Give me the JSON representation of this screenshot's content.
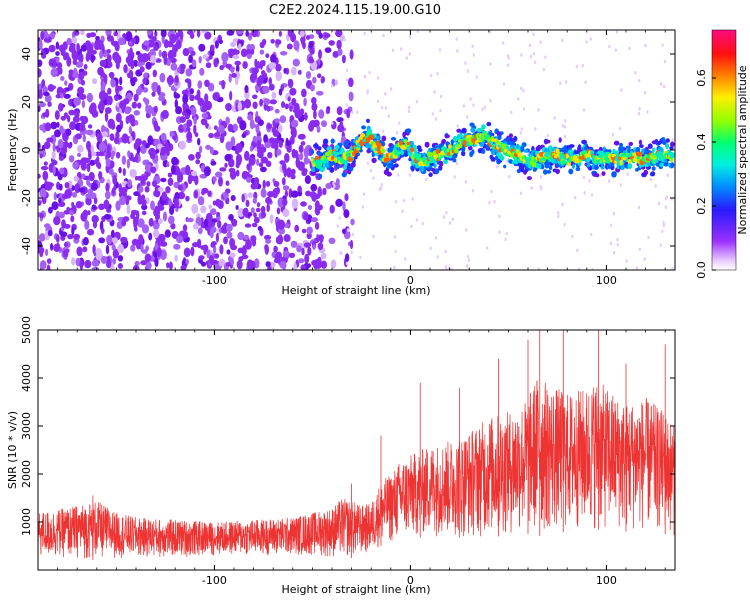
{
  "title": "C2E2.2024.115.19.00.G10",
  "colors": {
    "snr_line": "#ee3333",
    "background": "#ffffff",
    "axis": "#000000"
  },
  "chart_data": [
    {
      "type": "heatmap",
      "xlabel": "Height of straight line (km)",
      "ylabel": "Frequency (Hz)",
      "xlim": [
        -190,
        135
      ],
      "ylim": [
        -50,
        50
      ],
      "xticks": [
        -100,
        0,
        100
      ],
      "xtick_labels": [
        "-100",
        "0",
        "100"
      ],
      "yticks": [
        -40,
        -20,
        0,
        20,
        40
      ],
      "ytick_labels": [
        "-40",
        "-20",
        "0",
        "20",
        "40"
      ],
      "colorbar": {
        "label": "Normalized spectral amplitude",
        "range": [
          0,
          0.75
        ],
        "ticks": [
          0.0,
          0.2,
          0.4,
          0.6
        ],
        "tick_labels": [
          "0.0",
          "0.2",
          "0.4",
          "0.6"
        ],
        "colormap": "rainbow: white, violet, blue, cyan, green, yellow, orange, red, magenta"
      },
      "noise_region_x": [
        -190,
        -35
      ],
      "signal_trace": {
        "x": [
          -50,
          -45,
          -40,
          -35,
          -30,
          -25,
          -22,
          -18,
          -15,
          -12,
          -8,
          -5,
          -2,
          0,
          3,
          8,
          15,
          20,
          25,
          30,
          35,
          38,
          42,
          48,
          55,
          60,
          65,
          70,
          75,
          80,
          85,
          90,
          95,
          100,
          105,
          110,
          115,
          120,
          125,
          130,
          134
        ],
        "y": [
          -6,
          -4,
          -2,
          -4,
          -2,
          4,
          6,
          2,
          0,
          -4,
          -2,
          2,
          3,
          0,
          -4,
          -4,
          -2,
          0,
          2,
          4,
          5,
          6,
          3,
          0,
          -2,
          -5,
          -4,
          -3,
          -2,
          -4,
          -3,
          -2,
          -4,
          -3,
          -4,
          -3,
          -3,
          -4,
          -3,
          -2,
          -3
        ]
      }
    },
    {
      "type": "area",
      "xlabel": "Height of straight line (km)",
      "ylabel": "SNR (10 * v/v)",
      "xlim": [
        -190,
        135
      ],
      "ylim": [
        0,
        5000
      ],
      "xticks": [
        -100,
        0,
        100
      ],
      "xtick_labels": [
        "-100",
        "0",
        "100"
      ],
      "yticks": [
        1000,
        2000,
        3000,
        4000,
        5000
      ],
      "ytick_labels": [
        "1000",
        "2000",
        "3000",
        "4000",
        "5000"
      ],
      "envelope": {
        "x": [
          -190,
          -175,
          -160,
          -150,
          -140,
          -120,
          -100,
          -80,
          -60,
          -50,
          -40,
          -35,
          -30,
          -25,
          -20,
          -15,
          -10,
          -5,
          0,
          10,
          20,
          30,
          40,
          50,
          60,
          65,
          70,
          80,
          90,
          95,
          100,
          110,
          120,
          130,
          135
        ],
        "upper": [
          1200,
          1300,
          1450,
          1200,
          1100,
          1050,
          1000,
          1050,
          1100,
          1200,
          1300,
          1500,
          1450,
          1350,
          1400,
          1850,
          2000,
          2300,
          2400,
          2600,
          2700,
          2900,
          3200,
          3300,
          3600,
          4100,
          3900,
          3700,
          3800,
          4000,
          3800,
          3500,
          3600,
          3300,
          3000
        ],
        "lower": [
          250,
          250,
          200,
          250,
          250,
          250,
          300,
          300,
          300,
          300,
          250,
          250,
          250,
          300,
          350,
          500,
          550,
          600,
          650,
          700,
          700,
          650,
          700,
          700,
          750,
          700,
          750,
          800,
          800,
          850,
          800,
          800,
          800,
          750,
          700
        ],
        "spikes": [
          {
            "x": -162,
            "y": 1550
          },
          {
            "x": -30,
            "y": 1800
          },
          {
            "x": -15,
            "y": 2800
          },
          {
            "x": 5,
            "y": 3900
          },
          {
            "x": 25,
            "y": 3800
          },
          {
            "x": 45,
            "y": 4400
          },
          {
            "x": 60,
            "y": 4800
          },
          {
            "x": 66,
            "y": 5000
          },
          {
            "x": 78,
            "y": 5000
          },
          {
            "x": 96,
            "y": 5000
          },
          {
            "x": 110,
            "y": 4300
          },
          {
            "x": 130,
            "y": 4700
          }
        ]
      }
    }
  ]
}
